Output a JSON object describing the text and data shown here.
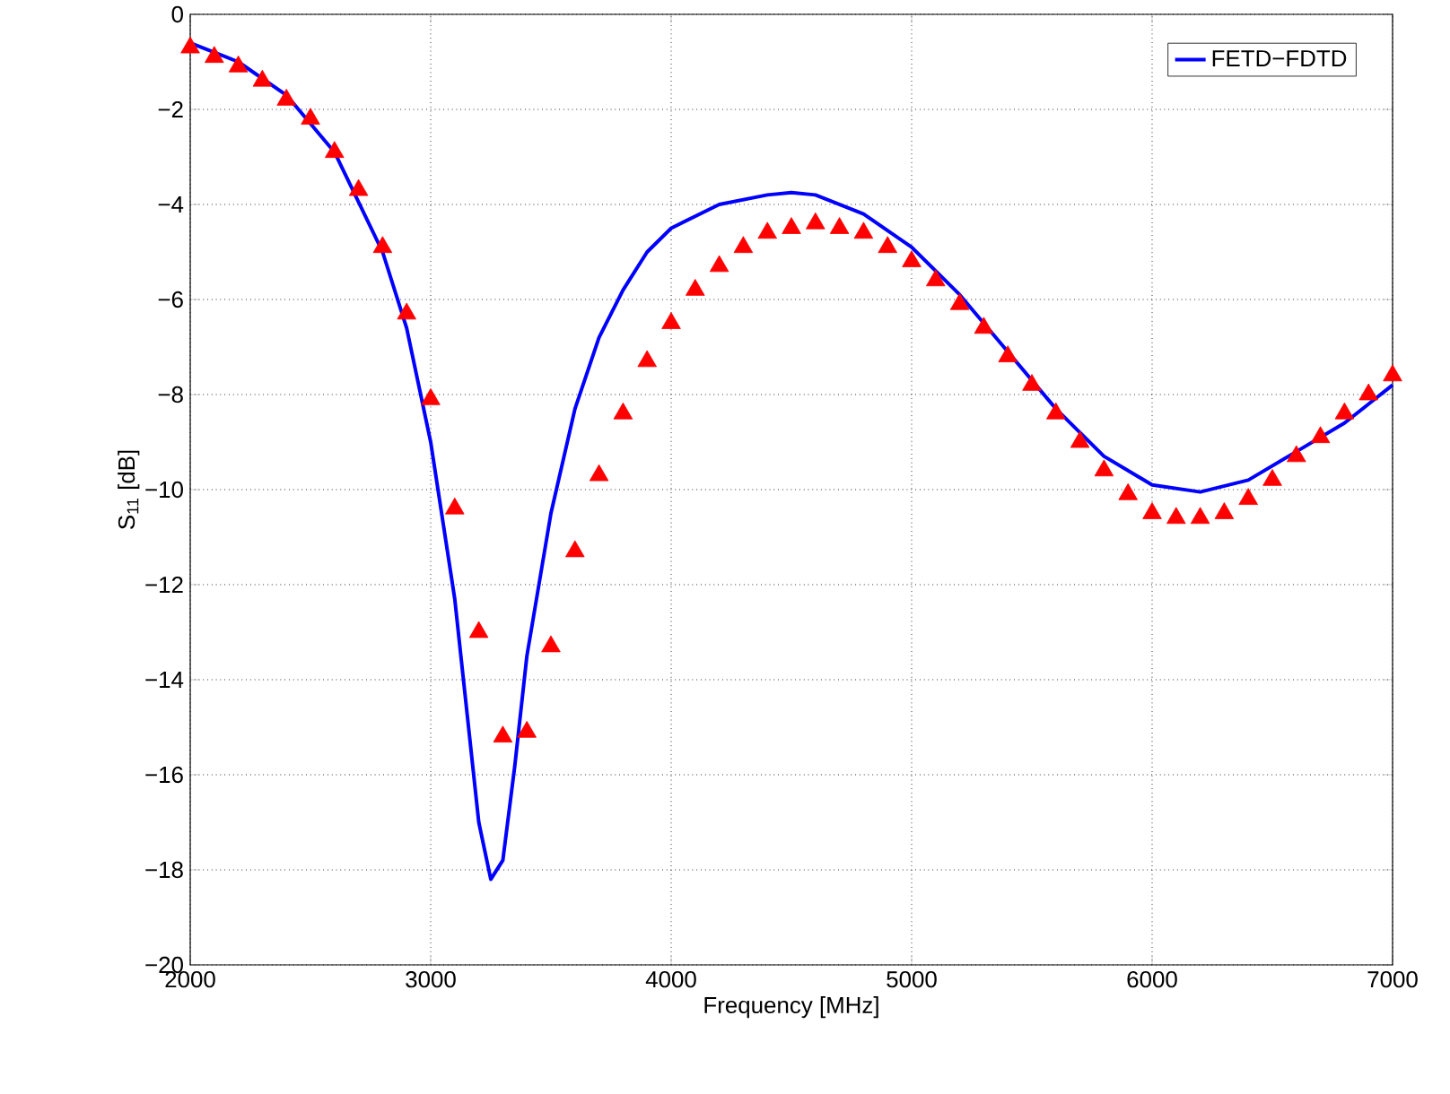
{
  "chart_data": {
    "type": "line",
    "xlabel": "Frequency [MHz]",
    "ylabel": "S$_{11}$ [dB]",
    "xlim": [
      2000,
      7000
    ],
    "ylim": [
      -20,
      0
    ],
    "xticks": [
      2000,
      3000,
      4000,
      5000,
      6000,
      7000
    ],
    "yticks": [
      {
        "value": -20,
        "label": "−20"
      },
      {
        "value": -18,
        "label": "−18"
      },
      {
        "value": -16,
        "label": "−16"
      },
      {
        "value": -14,
        "label": "−14"
      },
      {
        "value": -12,
        "label": "−12"
      },
      {
        "value": -10,
        "label": "−10"
      },
      {
        "value": -8,
        "label": "−8"
      },
      {
        "value": -6,
        "label": "−6"
      },
      {
        "value": -4,
        "label": "−4"
      },
      {
        "value": -2,
        "label": "−2"
      },
      0
    ],
    "grid": true,
    "legend": "top right",
    "series": [
      {
        "name": "FETD−FDTD",
        "color": "#0000ff",
        "marker": "none",
        "line_style": "solid",
        "x": [
          2000,
          2200,
          2400,
          2600,
          2800,
          2900,
          3000,
          3100,
          3200,
          3250,
          3300,
          3350,
          3400,
          3500,
          3600,
          3700,
          3800,
          3900,
          4000,
          4200,
          4400,
          4500,
          4600,
          4800,
          5000,
          5200,
          5400,
          5600,
          5800,
          6000,
          6200,
          6400,
          6600,
          6800,
          7000
        ],
        "values": [
          -0.6,
          -1.0,
          -1.7,
          -2.9,
          -5.0,
          -6.6,
          -9.0,
          -12.3,
          -17.0,
          -18.2,
          -17.8,
          -15.8,
          -13.5,
          -10.5,
          -8.3,
          -6.8,
          -5.8,
          -5.0,
          -4.5,
          -4.0,
          -3.8,
          -3.75,
          -3.8,
          -4.2,
          -4.9,
          -5.9,
          -7.1,
          -8.3,
          -9.3,
          -9.9,
          -10.05,
          -9.8,
          -9.2,
          -8.6,
          -7.8
        ]
      },
      {
        "type": "scatter",
        "color": "#ff0000",
        "marker": "triangle",
        "x": [
          2000,
          2100,
          2200,
          2300,
          2400,
          2500,
          2600,
          2700,
          2800,
          2900,
          3000,
          3100,
          3200,
          3300,
          3400,
          3500,
          3600,
          3700,
          3800,
          3900,
          4000,
          4100,
          4200,
          4300,
          4400,
          4500,
          4600,
          4700,
          4800,
          4900,
          5000,
          5100,
          5200,
          5300,
          5400,
          5500,
          5600,
          5700,
          5800,
          5900,
          6000,
          6100,
          6200,
          6300,
          6400,
          6500,
          6600,
          6700,
          6800,
          6900,
          7000
        ],
        "values": [
          -0.7,
          -0.9,
          -1.1,
          -1.4,
          -1.8,
          -2.2,
          -2.9,
          -3.7,
          -4.9,
          -6.3,
          -8.1,
          -10.4,
          -13.0,
          -15.2,
          -15.1,
          -13.3,
          -11.3,
          -9.7,
          -8.4,
          -7.3,
          -6.5,
          -5.8,
          -5.3,
          -4.9,
          -4.6,
          -4.5,
          -4.4,
          -4.5,
          -4.6,
          -4.9,
          -5.2,
          -5.6,
          -6.1,
          -6.6,
          -7.2,
          -7.8,
          -8.4,
          -9.0,
          -9.6,
          -10.1,
          -10.5,
          -10.6,
          -10.6,
          -10.5,
          -10.2,
          -9.8,
          -9.3,
          -8.9,
          -8.4,
          -8.0,
          -7.6
        ]
      }
    ]
  }
}
